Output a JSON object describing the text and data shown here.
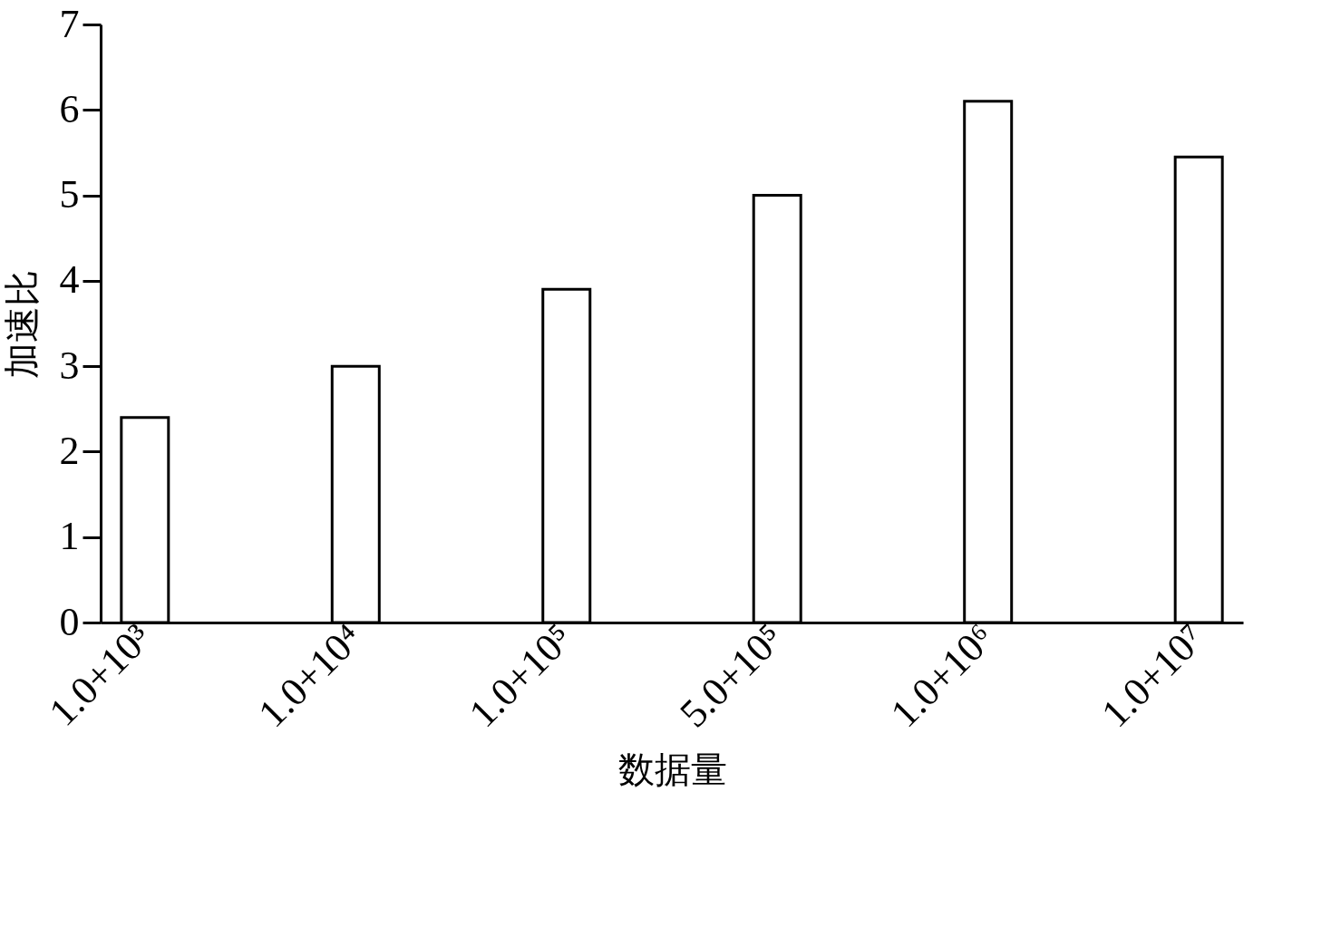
{
  "chart_data": {
    "type": "bar",
    "xlabel": "数据量",
    "ylabel": "加速比",
    "categories": [
      "1.0+10³",
      "1.0+10⁴",
      "1.0+10⁵",
      "5.0+10⁵",
      "1.0+10⁶",
      "1.0+10⁷"
    ],
    "values": [
      2.4,
      3.0,
      3.9,
      5.0,
      6.1,
      5.45
    ],
    "color": "#ffffff",
    "ylim": [
      0,
      7
    ],
    "yticks": [
      0,
      1,
      2,
      3,
      4,
      5,
      6,
      7
    ],
    "grid": false
  }
}
